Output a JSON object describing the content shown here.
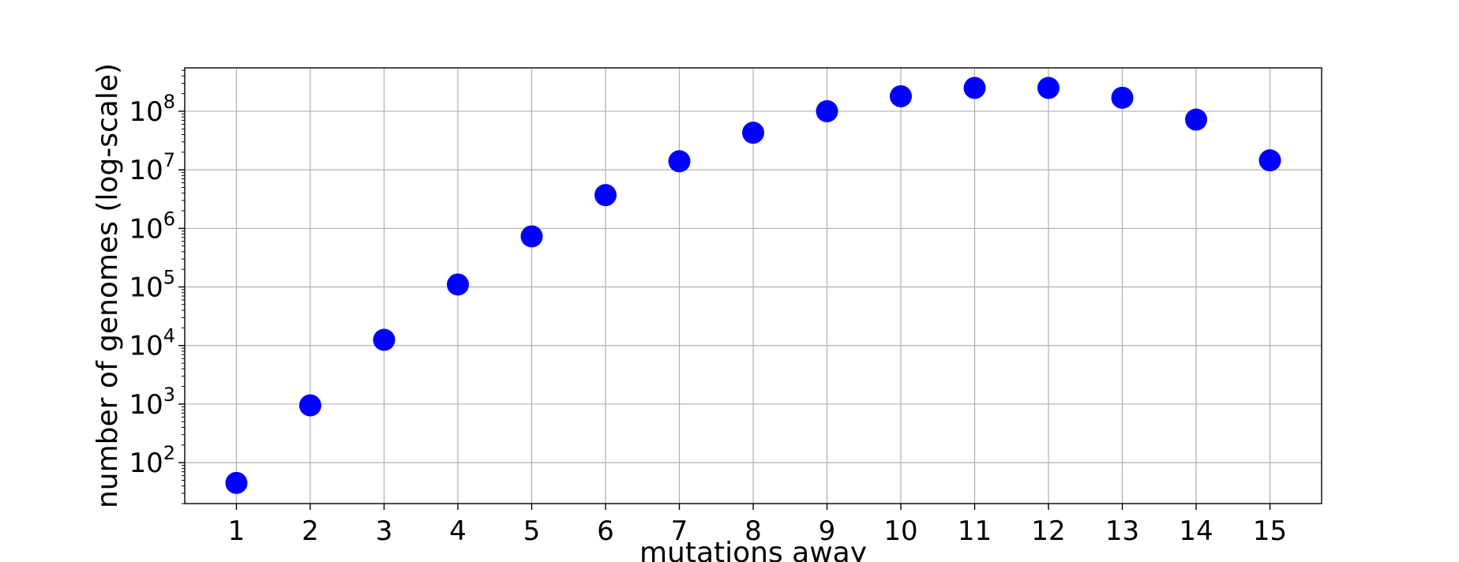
{
  "chart_data": {
    "type": "scatter",
    "xlabel": "mutations away",
    "ylabel": "number of genomes (log-scale)",
    "yscale": "log",
    "grid": true,
    "x_ticks": [
      1,
      2,
      3,
      4,
      5,
      6,
      7,
      8,
      9,
      10,
      11,
      12,
      13,
      14,
      15
    ],
    "y_ticks": [
      {
        "base": "10",
        "exp": "2",
        "value": 100
      },
      {
        "base": "10",
        "exp": "3",
        "value": 1000
      },
      {
        "base": "10",
        "exp": "4",
        "value": 10000
      },
      {
        "base": "10",
        "exp": "5",
        "value": 100000
      },
      {
        "base": "10",
        "exp": "6",
        "value": 1000000
      },
      {
        "base": "10",
        "exp": "7",
        "value": 10000000
      },
      {
        "base": "10",
        "exp": "8",
        "value": 100000000
      }
    ],
    "xlim": [
      0.3,
      15.7
    ],
    "ylim": [
      20,
      550000000
    ],
    "series": [
      {
        "color": "#0000ff",
        "x": [
          1,
          2,
          3,
          4,
          5,
          6,
          7,
          8,
          9,
          10,
          11,
          12,
          13,
          14,
          15
        ],
        "y": [
          45,
          950,
          12500,
          110000,
          730000,
          3700000,
          14000000,
          43000000,
          100000000,
          180000000,
          250000000,
          250000000,
          170000000,
          72000000,
          14500000
        ]
      }
    ]
  }
}
